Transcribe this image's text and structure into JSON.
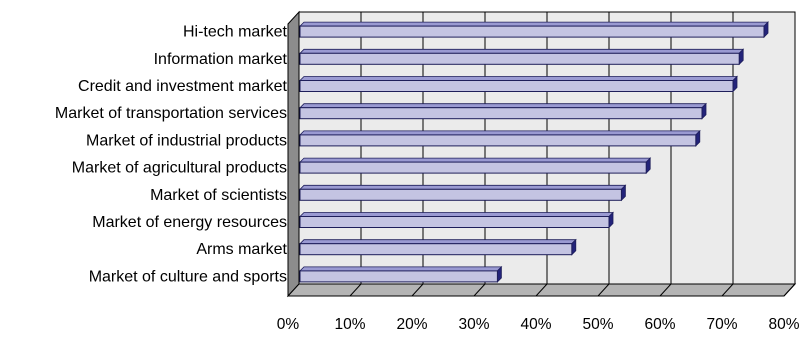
{
  "chart_data": {
    "type": "bar",
    "orientation": "horizontal",
    "style": "3d",
    "categories": [
      "Hi-tech market",
      "Information market",
      "Credit and investment market",
      "Market of transportation services",
      "Market of industrial products",
      "Market of agricultural products",
      "Market of scientists",
      "Market of energy resources",
      "Arms market",
      "Market of culture and sports"
    ],
    "values": [
      75,
      71,
      70,
      65,
      64,
      56,
      52,
      50,
      44,
      32
    ],
    "xlim": [
      0,
      80
    ],
    "x_ticks": [
      "0%",
      "10%",
      "20%",
      "30%",
      "40%",
      "50%",
      "60%",
      "70%",
      "80%"
    ],
    "title": "",
    "xlabel": "",
    "ylabel": "",
    "grid": "vertical",
    "legend": "none",
    "colors": {
      "bar_face": "#c4c4e2",
      "bar_edge": "#1e1e5a",
      "bar_top": "#9a9ad2",
      "bar_side": "#23237a",
      "plot_wall": "#ebebeb",
      "side_wall": "#8c8c8c",
      "floor": "#b4b4b4",
      "gridline": "#000000"
    }
  }
}
